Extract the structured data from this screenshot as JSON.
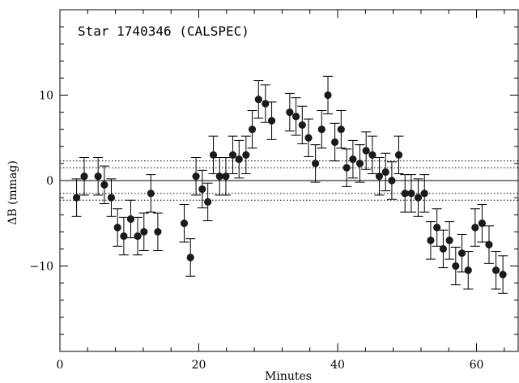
{
  "chart_data": {
    "type": "scatter",
    "title": "Star 1740346 (CALSPEC)",
    "xlabel": "Minutes",
    "ylabel": "ΔB (mmag)",
    "xlim": [
      0,
      66
    ],
    "ylim": [
      -20,
      20
    ],
    "x_ticks": [
      0,
      20,
      40,
      60
    ],
    "y_ticks": [
      -10,
      0,
      10
    ],
    "x_minor_step": 4,
    "y_minor_step": 2,
    "grid": false,
    "colors": {
      "points": "#1a1a1a",
      "lines": "#000000"
    },
    "reference_lines": [
      {
        "y": 0,
        "style": "solid"
      },
      {
        "y": 2.3,
        "style": "dotted"
      },
      {
        "y": 1.5,
        "style": "dotted"
      },
      {
        "y": -1.5,
        "style": "dotted"
      },
      {
        "y": -2.3,
        "style": "dotted"
      }
    ],
    "points": [
      {
        "x": 2.4,
        "y": -2.0,
        "err": 2.2
      },
      {
        "x": 3.5,
        "y": 0.5,
        "err": 2.2
      },
      {
        "x": 5.5,
        "y": 0.5,
        "err": 2.2
      },
      {
        "x": 6.4,
        "y": -0.5,
        "err": 2.2
      },
      {
        "x": 7.4,
        "y": -2.0,
        "err": 2.2
      },
      {
        "x": 8.3,
        "y": -5.5,
        "err": 2.2
      },
      {
        "x": 9.2,
        "y": -6.5,
        "err": 2.2
      },
      {
        "x": 10.2,
        "y": -4.5,
        "err": 2.2
      },
      {
        "x": 11.2,
        "y": -6.5,
        "err": 2.2
      },
      {
        "x": 12.1,
        "y": -6.0,
        "err": 2.2
      },
      {
        "x": 13.1,
        "y": -1.5,
        "err": 2.2
      },
      {
        "x": 14.1,
        "y": -6.0,
        "err": 2.2
      },
      {
        "x": 17.9,
        "y": -5.0,
        "err": 2.2
      },
      {
        "x": 18.8,
        "y": -9.0,
        "err": 2.2
      },
      {
        "x": 19.6,
        "y": 0.5,
        "err": 2.2
      },
      {
        "x": 20.5,
        "y": -1.0,
        "err": 2.2
      },
      {
        "x": 21.3,
        "y": -2.5,
        "err": 2.2
      },
      {
        "x": 22.1,
        "y": 3.0,
        "err": 2.2
      },
      {
        "x": 23.0,
        "y": 0.5,
        "err": 2.2
      },
      {
        "x": 23.9,
        "y": 0.5,
        "err": 2.2
      },
      {
        "x": 24.9,
        "y": 3.0,
        "err": 2.2
      },
      {
        "x": 25.8,
        "y": 2.5,
        "err": 2.2
      },
      {
        "x": 26.8,
        "y": 3.0,
        "err": 2.2
      },
      {
        "x": 27.7,
        "y": 6.0,
        "err": 2.2
      },
      {
        "x": 28.6,
        "y": 9.5,
        "err": 2.2
      },
      {
        "x": 29.6,
        "y": 9.0,
        "err": 2.2
      },
      {
        "x": 30.5,
        "y": 7.0,
        "err": 2.2
      },
      {
        "x": 33.1,
        "y": 8.0,
        "err": 2.2
      },
      {
        "x": 34.0,
        "y": 7.5,
        "err": 2.2
      },
      {
        "x": 34.9,
        "y": 6.5,
        "err": 2.2
      },
      {
        "x": 35.8,
        "y": 5.0,
        "err": 2.2
      },
      {
        "x": 36.8,
        "y": 2.0,
        "err": 2.2
      },
      {
        "x": 37.7,
        "y": 6.0,
        "err": 2.2
      },
      {
        "x": 38.6,
        "y": 10.0,
        "err": 2.2
      },
      {
        "x": 39.6,
        "y": 4.5,
        "err": 2.2
      },
      {
        "x": 40.5,
        "y": 6.0,
        "err": 2.2
      },
      {
        "x": 41.3,
        "y": 1.5,
        "err": 2.2
      },
      {
        "x": 42.2,
        "y": 2.5,
        "err": 2.2
      },
      {
        "x": 43.2,
        "y": 2.0,
        "err": 2.2
      },
      {
        "x": 44.1,
        "y": 3.5,
        "err": 2.2
      },
      {
        "x": 45.0,
        "y": 3.0,
        "err": 2.2
      },
      {
        "x": 46.0,
        "y": 0.5,
        "err": 2.2
      },
      {
        "x": 46.9,
        "y": 1.0,
        "err": 2.2
      },
      {
        "x": 47.8,
        "y": 0.0,
        "err": 2.2
      },
      {
        "x": 48.8,
        "y": 3.0,
        "err": 2.2
      },
      {
        "x": 49.7,
        "y": -1.5,
        "err": 2.2
      },
      {
        "x": 50.6,
        "y": -1.5,
        "err": 2.2
      },
      {
        "x": 51.6,
        "y": -2.0,
        "err": 2.2
      },
      {
        "x": 52.5,
        "y": -1.5,
        "err": 2.2
      },
      {
        "x": 53.4,
        "y": -7.0,
        "err": 2.2
      },
      {
        "x": 54.3,
        "y": -5.5,
        "err": 2.2
      },
      {
        "x": 55.2,
        "y": -8.0,
        "err": 2.2
      },
      {
        "x": 56.1,
        "y": -7.0,
        "err": 2.2
      },
      {
        "x": 57.0,
        "y": -10.0,
        "err": 2.2
      },
      {
        "x": 57.9,
        "y": -8.5,
        "err": 2.2
      },
      {
        "x": 58.8,
        "y": -10.5,
        "err": 2.2
      },
      {
        "x": 59.8,
        "y": -5.5,
        "err": 2.2
      },
      {
        "x": 60.8,
        "y": -5.0,
        "err": 2.2
      },
      {
        "x": 61.8,
        "y": -7.5,
        "err": 2.2
      },
      {
        "x": 62.8,
        "y": -10.5,
        "err": 2.2
      },
      {
        "x": 63.8,
        "y": -11.0,
        "err": 2.2
      }
    ]
  }
}
